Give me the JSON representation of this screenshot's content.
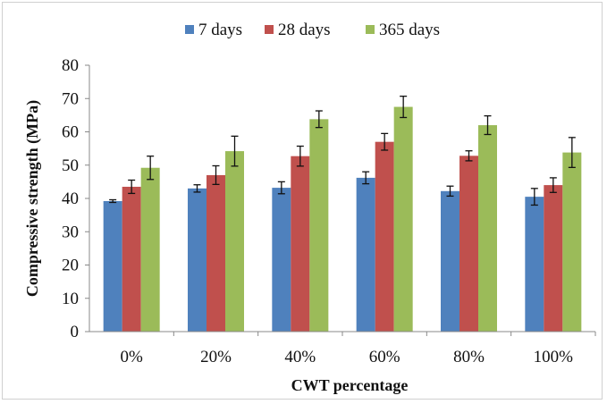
{
  "chart_data": {
    "type": "bar",
    "xlabel": "CWT percentage",
    "ylabel": "Compressive strength (MPa)",
    "ylim": [
      0,
      80
    ],
    "yticks": [
      0,
      10,
      20,
      30,
      40,
      50,
      60,
      70,
      80
    ],
    "categories": [
      "0%",
      "20%",
      "40%",
      "60%",
      "80%",
      "100%"
    ],
    "legend": "top",
    "grid": false,
    "series": [
      {
        "name": "7 days",
        "color": "#4f81bd",
        "values": [
          39.2,
          43.0,
          43.2,
          46.2,
          42.2,
          40.5
        ],
        "errors": [
          0.4,
          1.1,
          1.8,
          1.8,
          1.5,
          2.5
        ]
      },
      {
        "name": "28 days",
        "color": "#c0504d",
        "values": [
          43.5,
          47.0,
          52.7,
          57.0,
          52.8,
          44.0
        ],
        "errors": [
          2.0,
          2.8,
          3.0,
          2.5,
          1.5,
          2.2
        ]
      },
      {
        "name": "365 days",
        "color": "#9bbb59",
        "values": [
          49.2,
          54.2,
          63.8,
          67.5,
          62.0,
          53.8
        ],
        "errors": [
          3.5,
          4.5,
          2.5,
          3.2,
          2.8,
          4.5
        ]
      }
    ]
  }
}
